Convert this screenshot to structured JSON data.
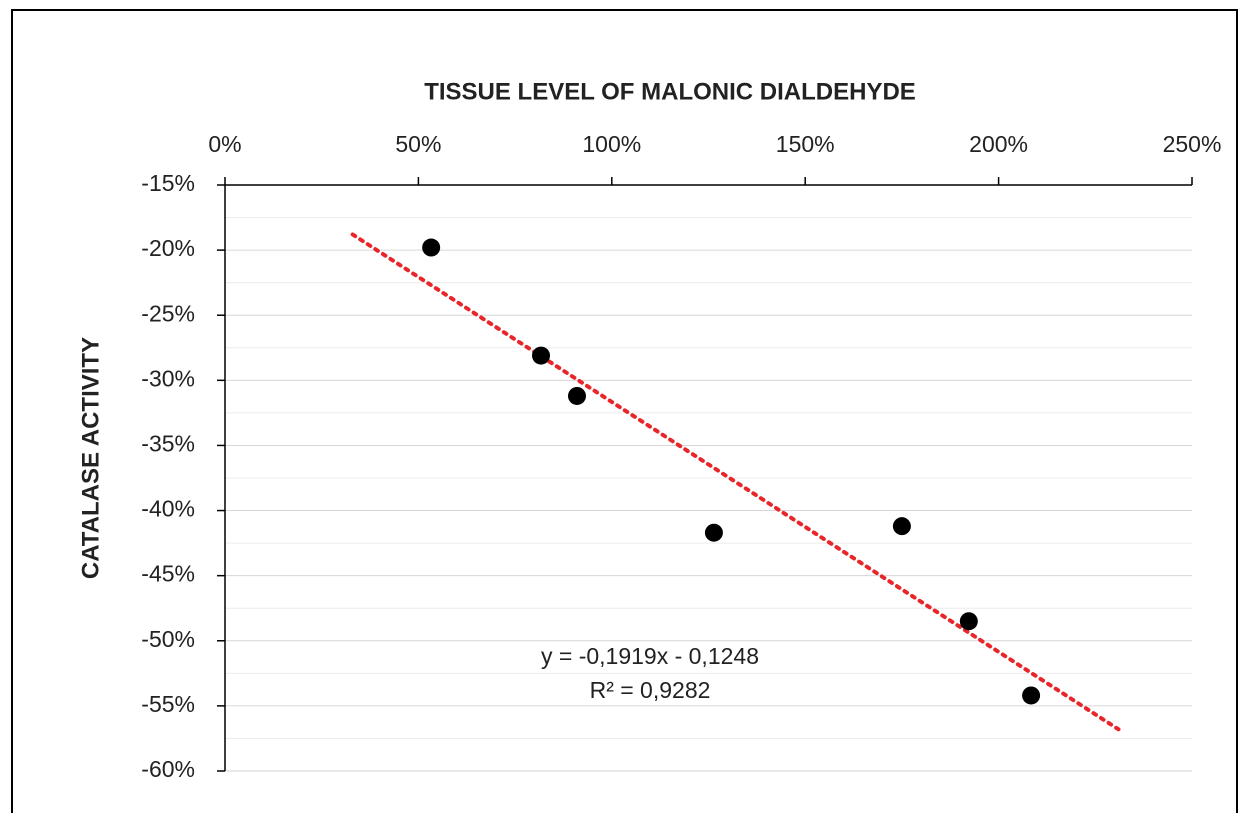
{
  "chart_data": {
    "type": "scatter",
    "title": "TISSUE LEVEL OF MALONIC DIALDEHYDE",
    "y_label": "CATALASE  ACTIVITY",
    "annotations": [
      "y = -0,1919x - 0,1248",
      "R² = 0,9282"
    ],
    "series": [
      {
        "name": "data",
        "color": "#000000",
        "x": [
          53.3,
          81.7,
          91,
          126.4,
          175,
          192.3,
          208.4
        ],
        "values": [
          -19.8,
          -28.1,
          -31.2,
          -41.7,
          -41.2,
          -48.5,
          -54.2
        ]
      }
    ],
    "trendline": {
      "color": "#e8262a",
      "x": [
        33,
        231
      ],
      "values": [
        -18.8,
        -56.8
      ]
    },
    "xlim": [
      0,
      250
    ],
    "xticks": [
      {
        "value": 0,
        "label": "0%"
      },
      {
        "value": 50,
        "label": "50%"
      },
      {
        "value": 100,
        "label": "100%"
      },
      {
        "value": 150,
        "label": "150%"
      },
      {
        "value": 200,
        "label": "200%"
      },
      {
        "value": 250,
        "label": "250%"
      }
    ],
    "ylim": [
      -60,
      -15
    ],
    "yticks": [
      {
        "value": -15,
        "label": "-15%"
      },
      {
        "value": -20,
        "label": "-20%"
      },
      {
        "value": -25,
        "label": "-25%"
      },
      {
        "value": -30,
        "label": "-30%"
      },
      {
        "value": -35,
        "label": "-35%"
      },
      {
        "value": -40,
        "label": "-40%"
      },
      {
        "value": -45,
        "label": "-45%"
      },
      {
        "value": -50,
        "label": "-50%"
      },
      {
        "value": -55,
        "label": "-55%"
      },
      {
        "value": -60,
        "label": "-60%"
      }
    ],
    "grid": true,
    "minor_grid": true
  }
}
